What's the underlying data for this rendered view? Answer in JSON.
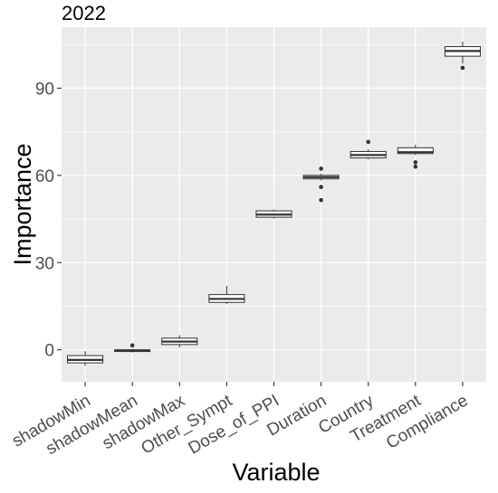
{
  "chart_data": {
    "type": "boxplot",
    "title": "2022",
    "xlabel": "Variable",
    "ylabel": "Importance",
    "ylim": [
      -11,
      111
    ],
    "yticks": [
      0,
      30,
      60,
      90
    ],
    "grid": true,
    "categories": [
      "shadowMin",
      "shadowMean",
      "shadowMax",
      "Other_Sympt",
      "Dose_of_PPI",
      "Duration",
      "Country",
      "Treatment",
      "Compliance"
    ],
    "boxes": [
      {
        "category": "shadowMin",
        "min": -5.5,
        "q1": -4.5,
        "median": -3.5,
        "q3": -2.0,
        "max": -0.5,
        "outliers": []
      },
      {
        "category": "shadowMean",
        "min": -0.9,
        "q1": -0.6,
        "median": -0.3,
        "q3": 0.0,
        "max": 0.3,
        "outliers": [
          1.5
        ]
      },
      {
        "category": "shadowMax",
        "min": 0.8,
        "q1": 1.8,
        "median": 2.8,
        "q3": 4.0,
        "max": 5.0,
        "outliers": []
      },
      {
        "category": "Other_Sympt",
        "min": 15.8,
        "q1": 16.3,
        "median": 17.5,
        "q3": 19.0,
        "max": 22.0,
        "outliers": []
      },
      {
        "category": "Dose_of_PPI",
        "min": 45.2,
        "q1": 45.6,
        "median": 46.5,
        "q3": 47.8,
        "max": 48.2,
        "outliers": []
      },
      {
        "category": "Duration",
        "min": 58.3,
        "q1": 58.8,
        "median": 59.4,
        "q3": 60.0,
        "max": 60.5,
        "outliers": [
          62.3,
          56.0,
          51.5
        ]
      },
      {
        "category": "Country",
        "min": 65.5,
        "q1": 66.0,
        "median": 67.0,
        "q3": 68.2,
        "max": 69.0,
        "outliers": [
          71.5
        ]
      },
      {
        "category": "Treatment",
        "min": 67.0,
        "q1": 67.5,
        "median": 68.0,
        "q3": 69.5,
        "max": 70.5,
        "outliers": [
          64.5,
          63.0
        ]
      },
      {
        "category": "Compliance",
        "min": 98.5,
        "q1": 101.0,
        "median": 102.8,
        "q3": 104.3,
        "max": 106.0,
        "outliers": [
          97.0
        ]
      }
    ],
    "colors": {
      "panel_bg": "#ebebeb",
      "grid": "#ffffff",
      "box_fill": "#ffffff",
      "box_line": "#333333",
      "tick_text": "#4d4d4d"
    }
  }
}
